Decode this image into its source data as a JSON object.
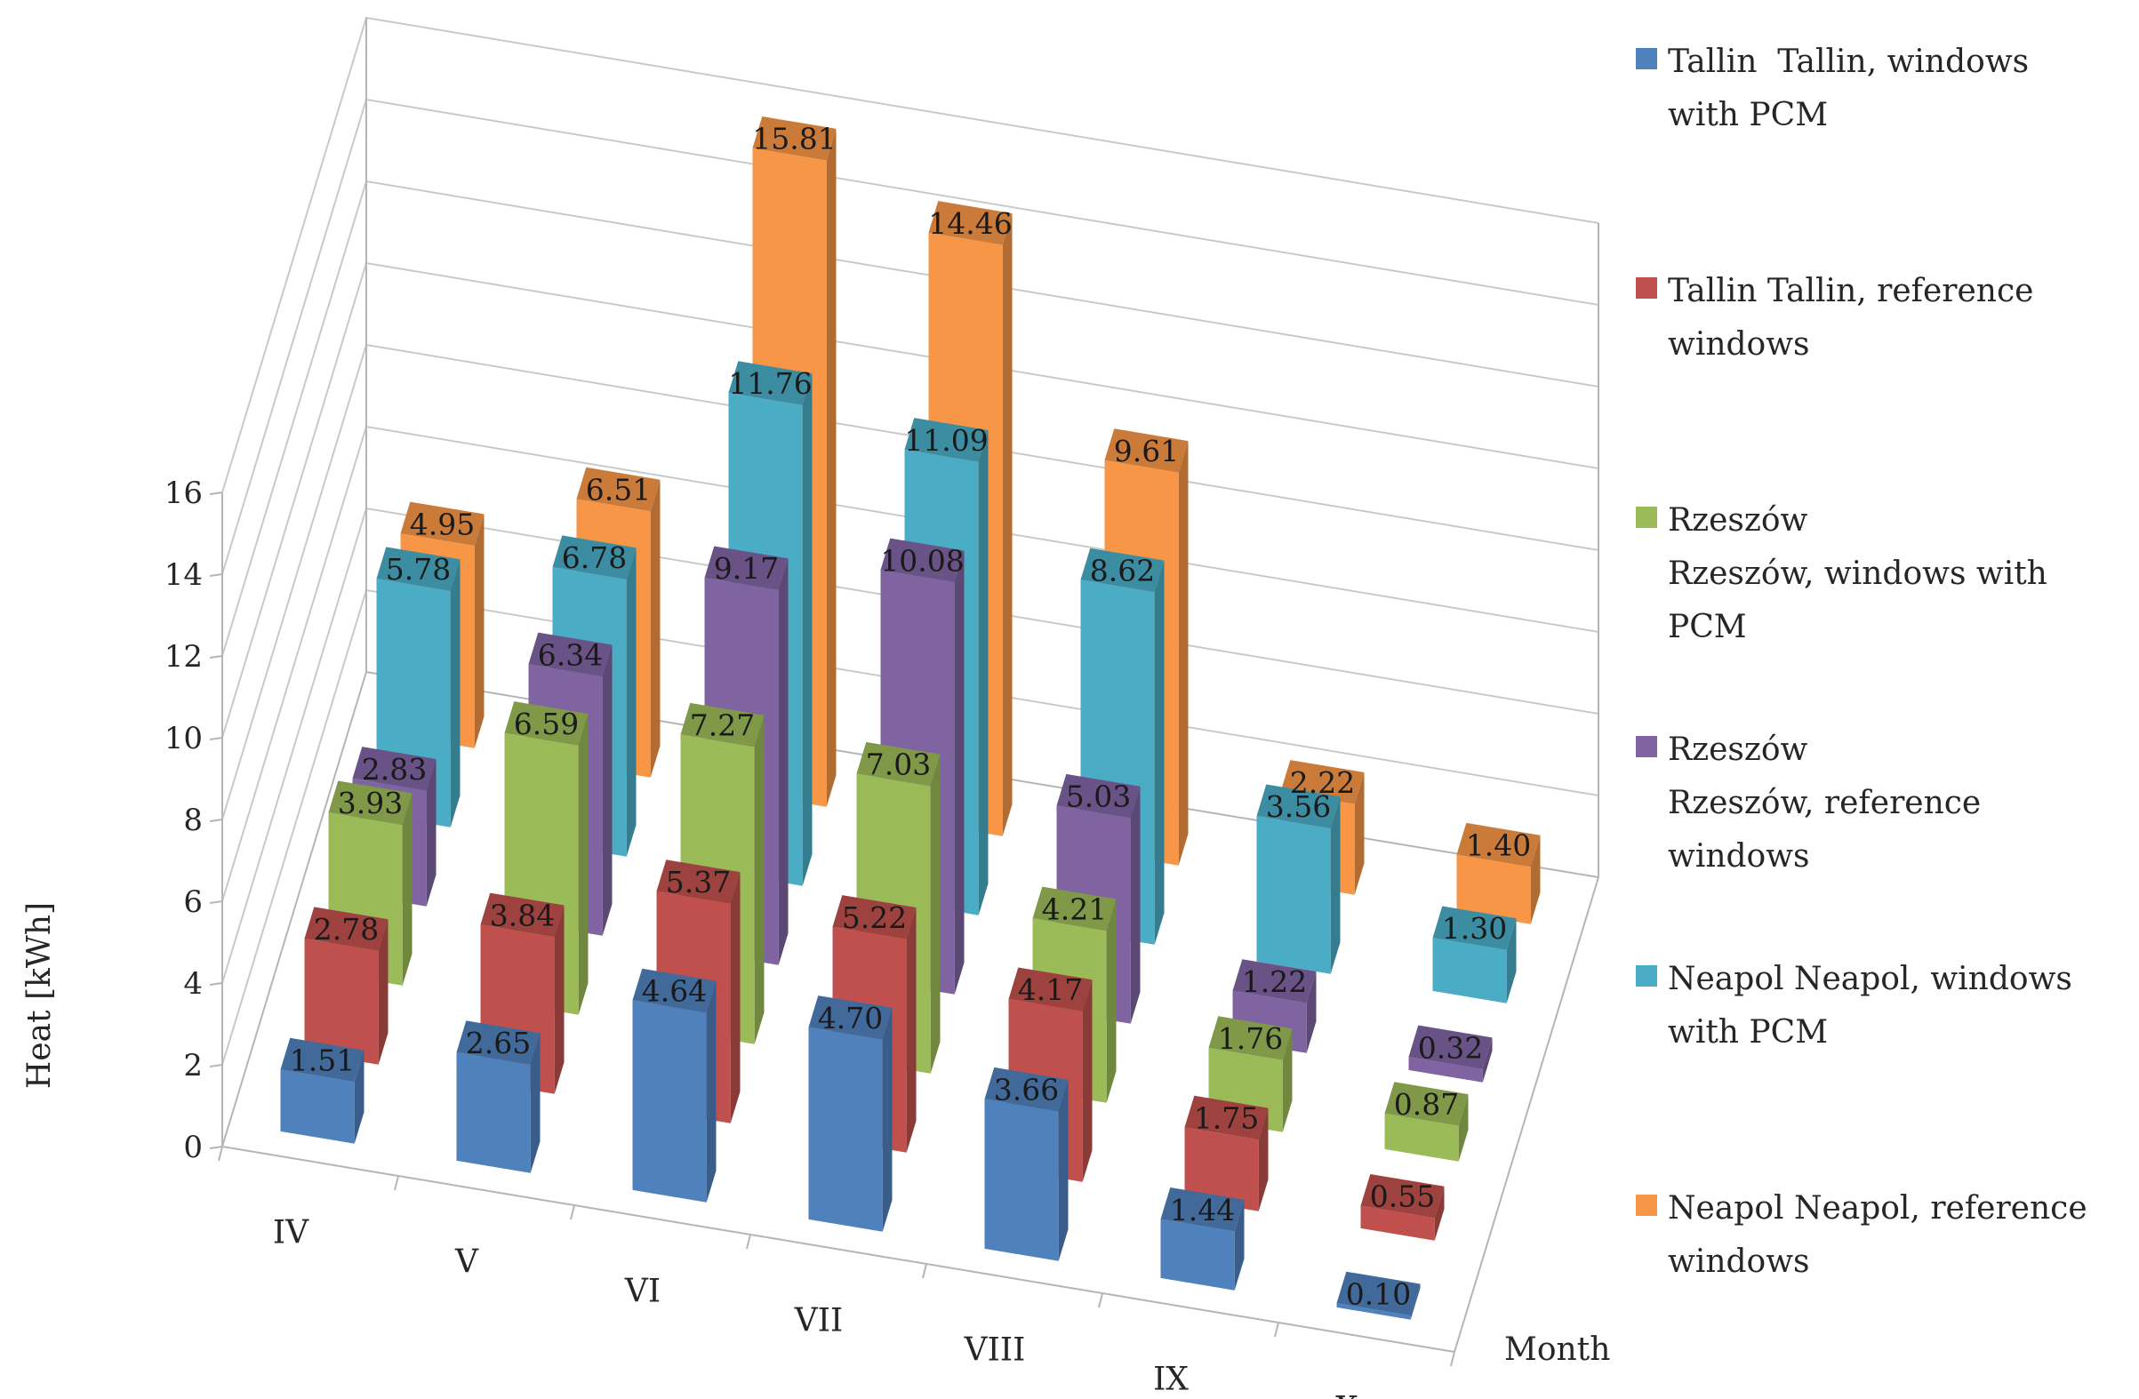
{
  "chart_data": {
    "type": "bar",
    "subtype": "3d-column",
    "title": "",
    "ylabel": "Heat   [kWh]",
    "xlabel": "Month",
    "ylim": [
      0,
      16
    ],
    "yticks": [
      "0",
      "2",
      "4",
      "6",
      "8",
      "10",
      "12",
      "14",
      "16"
    ],
    "categories": [
      "IV",
      "V",
      "VI",
      "VII",
      "VIII",
      "IX",
      "X"
    ],
    "grid": true,
    "legend_position": "right",
    "series": [
      {
        "name": "Tallin Tallin, windows with PCM",
        "color": "#4f81bd",
        "values": [
          1.51,
          2.65,
          4.64,
          4.7,
          3.66,
          1.44,
          0.1
        ],
        "labels": [
          "1.51",
          "2.65",
          "4.64",
          "4.70",
          "3.66",
          "1.44",
          "0.10"
        ]
      },
      {
        "name": "Tallin Tallin, reference windows",
        "color": "#c0504d",
        "values": [
          2.78,
          3.84,
          5.37,
          5.22,
          4.17,
          1.75,
          0.55
        ],
        "labels": [
          "2.78",
          "3.84",
          "5.37",
          "5.22",
          "4.17",
          "1.75",
          "0.55"
        ]
      },
      {
        "name": "Rzeszów Rzeszów, windows with PCM",
        "color": "#9bbb59",
        "values": [
          3.93,
          6.59,
          7.27,
          7.03,
          4.21,
          1.76,
          0.87
        ],
        "labels": [
          "3.93",
          "6.59",
          "7.27",
          "7.03",
          "4.21",
          "1.76",
          "0.87"
        ]
      },
      {
        "name": "Rzeszów Rzeszów, reference windows",
        "color": "#8064a2",
        "values": [
          2.83,
          6.34,
          9.17,
          10.08,
          5.03,
          1.22,
          0.32
        ],
        "labels": [
          "2.83",
          "6.34",
          "9.17",
          "10.08",
          "5.03",
          "1.22",
          "0.32"
        ]
      },
      {
        "name": "Neapol Neapol, windows with PCM",
        "color": "#4bacc6",
        "values": [
          5.78,
          6.78,
          11.76,
          11.09,
          8.62,
          3.56,
          1.3
        ],
        "labels": [
          "5.78",
          "6.78",
          "11.76",
          "11.09",
          "8.62",
          "3.56",
          "1.30"
        ]
      },
      {
        "name": "Neapol Neapol, reference windows",
        "color": "#f79646",
        "values": [
          4.95,
          6.51,
          15.81,
          14.46,
          9.61,
          2.22,
          1.4
        ],
        "labels": [
          "4.95",
          "6.51",
          "15.81",
          "14.46",
          "9.61",
          "2.22",
          "1.40"
        ]
      }
    ]
  },
  "legend": {
    "items": [
      {
        "lines": [
          "Tallin  Tallin, windows",
          "with PCM"
        ],
        "color": "#4f81bd"
      },
      {
        "lines": [
          "Tallin Tallin, reference",
          "windows"
        ],
        "color": "#c0504d"
      },
      {
        "lines": [
          "Rzeszów",
          "Rzeszów, windows with",
          "PCM"
        ],
        "color": "#9bbb59"
      },
      {
        "lines": [
          "Rzeszów",
          "Rzeszów, reference",
          "windows"
        ],
        "color": "#8064a2"
      },
      {
        "lines": [
          "Neapol Neapol, windows",
          "with PCM"
        ],
        "color": "#4bacc6"
      },
      {
        "lines": [
          "Neapol Neapol, reference",
          "windows"
        ],
        "color": "#f79646"
      }
    ]
  }
}
